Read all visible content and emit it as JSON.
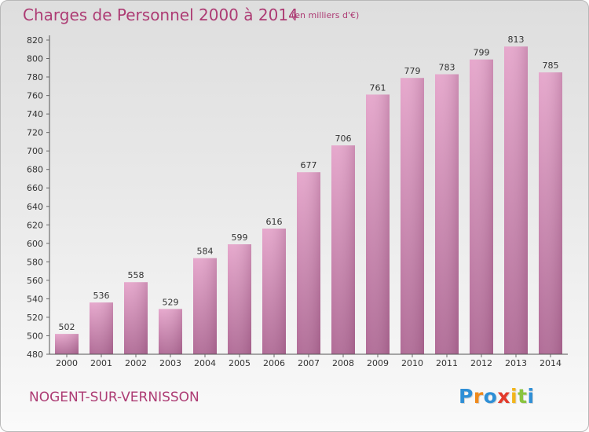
{
  "title": "Charges de Personnel 2000 à 2014",
  "unit_note": "(en milliers d'€)",
  "commune": "NOGENT-SUR-VERNISSON",
  "logo": {
    "text": "Proxiti",
    "letters": [
      "P",
      "r",
      "o",
      "x",
      "i",
      "t",
      "i"
    ],
    "colors": [
      "#2f8fd6",
      "#f08a1c",
      "#2f8fd6",
      "#e33a2b",
      "#f2b51b",
      "#8ac43f",
      "#2f8fd6"
    ]
  },
  "colors": {
    "bar_top": "#e6a7cc",
    "bar_bottom": "#b06b96",
    "axis": "#555555",
    "grid_tick": "#666666",
    "text": "#333333",
    "accent": "#ad3c74"
  },
  "chart_data": {
    "type": "bar",
    "title": "Charges de Personnel 2000 à 2014",
    "subtitle": "(en milliers d'€)",
    "categories": [
      "2000",
      "2001",
      "2002",
      "2003",
      "2004",
      "2005",
      "2006",
      "2007",
      "2008",
      "2009",
      "2010",
      "2011",
      "2012",
      "2013",
      "2014"
    ],
    "values": [
      502,
      536,
      558,
      529,
      584,
      599,
      616,
      677,
      706,
      761,
      779,
      783,
      799,
      813,
      785
    ],
    "data_labels": [
      "502",
      "536",
      "558",
      "529",
      "584",
      "599",
      "616",
      "677",
      "706",
      "761",
      "779",
      "783",
      "799",
      "813",
      "785"
    ],
    "y_ticks": [
      "480",
      "500",
      "520",
      "540",
      "560",
      "580",
      "600",
      "620",
      "640",
      "660",
      "680",
      "700",
      "720",
      "740",
      "760",
      "780",
      "800",
      "820"
    ],
    "ylim": [
      480,
      820
    ],
    "xlabel": "",
    "ylabel": "",
    "grid": false,
    "legend": "none"
  }
}
